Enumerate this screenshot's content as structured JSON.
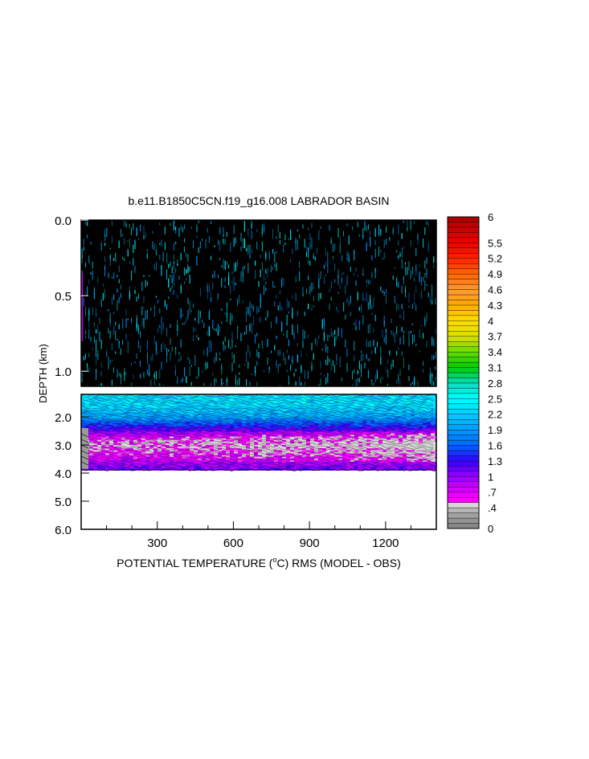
{
  "chart_data": {
    "type": "heatmap",
    "title": "b.e11.B1850C5CN.f19_g16.008 LABRADOR BASIN",
    "xlabel_pre": "POTENTIAL TEMPERATURE (",
    "xlabel_deg": "o",
    "xlabel_post": "C) RMS (MODEL - OBS)",
    "ylabel": "DEPTH (km)",
    "x_ticks": [
      300,
      600,
      900,
      1200
    ],
    "x_tick_labels": [
      "300",
      "600",
      "900",
      "1200"
    ],
    "xlim": [
      0,
      1400
    ],
    "upper_panel": {
      "ylim": [
        0.0,
        1.1
      ],
      "y_ticks": [
        0.0,
        0.5,
        1.0
      ],
      "y_tick_labels": [
        "0.0",
        "0.5",
        "1.0"
      ]
    },
    "lower_panel": {
      "ylim": [
        1.2,
        6.0
      ],
      "y_ticks": [
        2.0,
        3.0,
        4.0,
        5.0,
        6.0
      ],
      "y_tick_labels": [
        "2.0",
        "3.0",
        "4.0",
        "5.0",
        "6.0"
      ],
      "data_max_depth": 3.85
    },
    "depth_profile": [
      {
        "depth": 0.0,
        "value": 2.3
      },
      {
        "depth": 0.5,
        "value": 2.1
      },
      {
        "depth": 1.0,
        "value": 2.3
      },
      {
        "depth": 1.6,
        "value": 2.3
      },
      {
        "depth": 2.0,
        "value": 2.0
      },
      {
        "depth": 2.2,
        "value": 1.6
      },
      {
        "depth": 2.5,
        "value": 1.1
      },
      {
        "depth": 2.8,
        "value": 0.6
      },
      {
        "depth": 3.0,
        "value": 0.5
      },
      {
        "depth": 3.4,
        "value": 0.7
      },
      {
        "depth": 3.85,
        "value": 1.1
      }
    ],
    "colorbar": {
      "min": 0,
      "max": 6,
      "step": 0.1,
      "labels": [
        "6",
        "5.5",
        "5.2",
        "4.9",
        "4.6",
        "4.3",
        "4",
        "3.7",
        "3.4",
        "3.1",
        "2.8",
        "2.5",
        "2.2",
        "1.9",
        "1.6",
        "1.3",
        "1",
        ".7",
        ".4",
        "0"
      ],
      "label_values": [
        6,
        5.5,
        5.2,
        4.9,
        4.6,
        4.3,
        4,
        3.7,
        3.4,
        3.1,
        2.8,
        2.5,
        2.2,
        1.9,
        1.6,
        1.3,
        1,
        0.7,
        0.4,
        0
      ],
      "color_stops": [
        {
          "value": 0.0,
          "color": "#808080"
        },
        {
          "value": 0.3,
          "color": "#a8a8a8"
        },
        {
          "value": 0.45,
          "color": "#d6d6d6"
        },
        {
          "value": 0.55,
          "color": "#ff00ff"
        },
        {
          "value": 0.8,
          "color": "#cc00ff"
        },
        {
          "value": 1.05,
          "color": "#8800ff"
        },
        {
          "value": 1.3,
          "color": "#3300ff"
        },
        {
          "value": 1.6,
          "color": "#0066ff"
        },
        {
          "value": 1.9,
          "color": "#0099ff"
        },
        {
          "value": 2.2,
          "color": "#00ccff"
        },
        {
          "value": 2.5,
          "color": "#00ffff"
        },
        {
          "value": 2.8,
          "color": "#00ddbb"
        },
        {
          "value": 3.1,
          "color": "#00cc00"
        },
        {
          "value": 3.4,
          "color": "#66dd00"
        },
        {
          "value": 3.7,
          "color": "#dddd00"
        },
        {
          "value": 4.0,
          "color": "#ffdd00"
        },
        {
          "value": 4.3,
          "color": "#ffaa00"
        },
        {
          "value": 4.6,
          "color": "#ff9933"
        },
        {
          "value": 4.9,
          "color": "#ff6600"
        },
        {
          "value": 5.2,
          "color": "#ff2200"
        },
        {
          "value": 5.5,
          "color": "#ee0000"
        },
        {
          "value": 6.0,
          "color": "#aa0000"
        }
      ]
    }
  }
}
